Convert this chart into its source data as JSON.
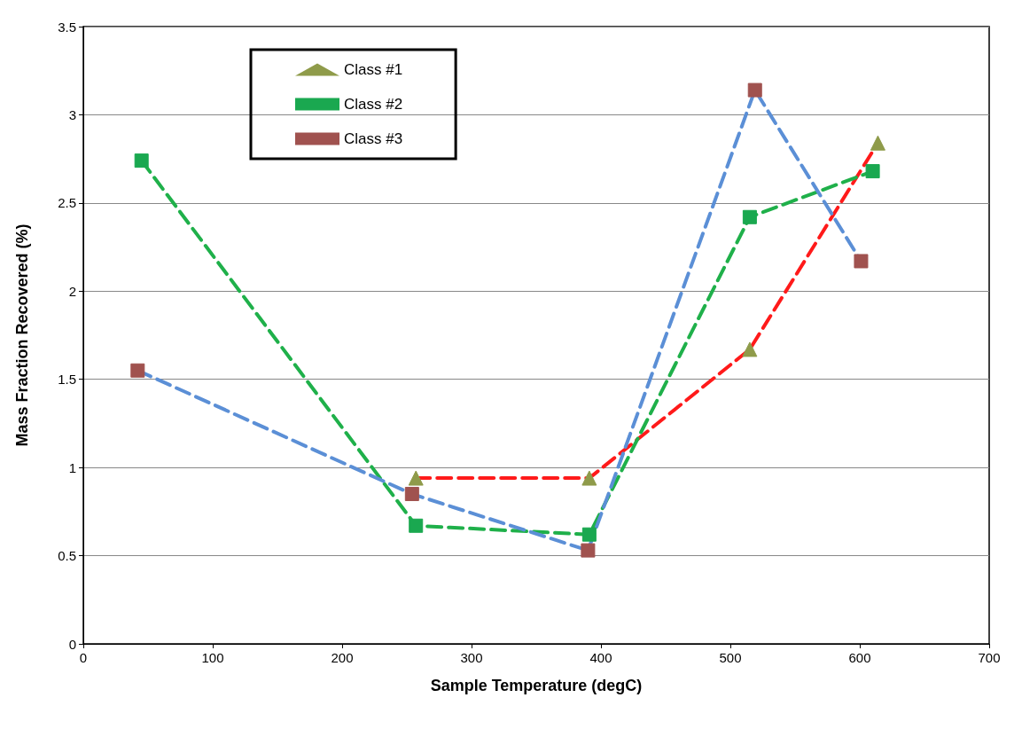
{
  "chart_data": {
    "type": "line",
    "xlabel": "Sample Temperature (degC)",
    "ylabel": "Mass Fraction Recovered (%)",
    "xlim": [
      0,
      700
    ],
    "xticks": [
      0,
      100,
      200,
      300,
      400,
      500,
      600,
      700
    ],
    "ylim": [
      0,
      3.5
    ],
    "yticks": [
      0,
      0.5,
      1,
      1.5,
      2,
      2.5,
      3,
      3.5
    ],
    "grid": "y",
    "legend": "top left",
    "line_style": "dashed",
    "series": [
      {
        "name": "Class #1",
        "color": "#ff1a1a",
        "marker": "triangle",
        "colors": [
          "#8f9b4a",
          "#8f9b4a",
          "#8f9b4a",
          "#8f9b4a"
        ],
        "x": [
          257,
          391,
          515,
          614
        ],
        "values": [
          0.94,
          0.94,
          1.67,
          2.84
        ]
      },
      {
        "name": "Class #2",
        "color": "#1fb04a",
        "marker": "square",
        "colors": [
          "#1aa850",
          "#1aa850",
          "#1aa850",
          "#1aa850",
          "#1aa850"
        ],
        "x": [
          45,
          257,
          391,
          515,
          610
        ],
        "values": [
          2.74,
          0.67,
          0.62,
          2.42,
          2.68
        ]
      },
      {
        "name": "Class #3",
        "color": "#5b8fd6",
        "marker": "square",
        "colors": [
          "#a0524f",
          "#a0524f",
          "#a0524f",
          "#a0524f",
          "#a0524f"
        ],
        "x": [
          42,
          254,
          390,
          519,
          601
        ],
        "values": [
          1.55,
          0.85,
          0.53,
          3.14,
          2.17
        ]
      }
    ]
  }
}
